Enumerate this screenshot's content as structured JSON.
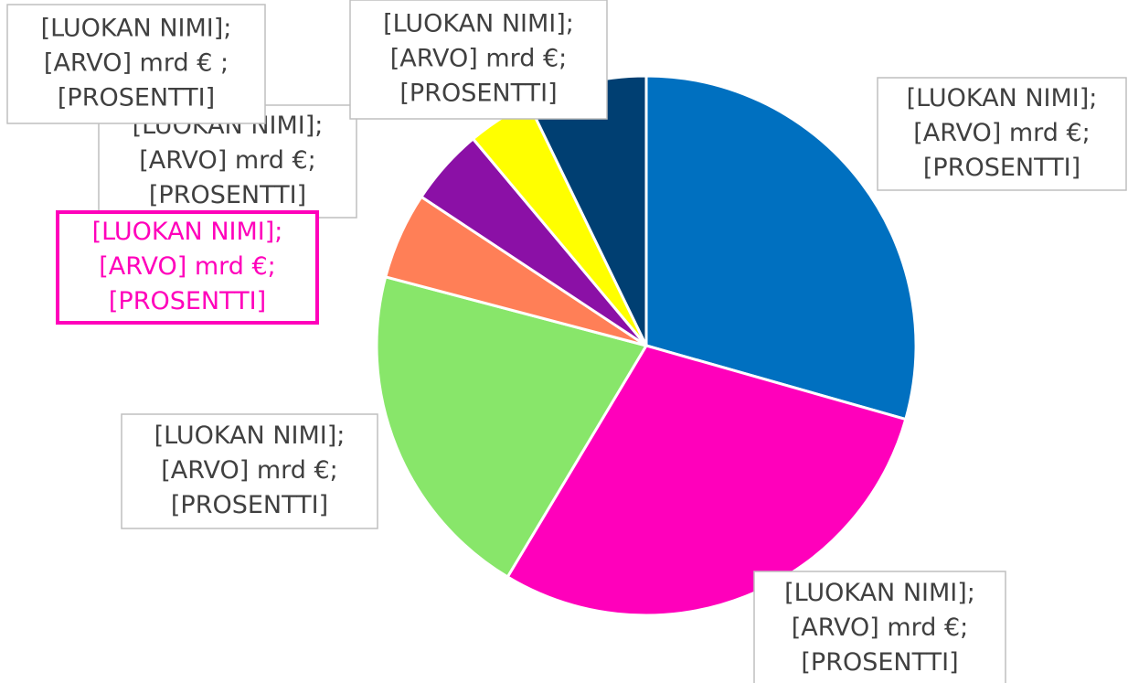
{
  "chart_data": {
    "type": "pie",
    "values": [
      29.4,
      29.2,
      20.5,
      5.2,
      4.6,
      3.9,
      7.2
    ],
    "colors": [
      "#0070c0",
      "#ff00bb",
      "#88e66a",
      "#ff7f57",
      "#8b10a6",
      "#ffff00",
      "#003f72"
    ],
    "labels": [
      [
        "[LUOKAN NIMI];",
        "[ARVO] mrd €;",
        "[PROSENTTI]"
      ],
      [
        "[LUOKAN NIMI];",
        "[ARVO] mrd €;",
        "[PROSENTTI]"
      ],
      [
        "[LUOKAN NIMI];",
        "[ARVO] mrd €;",
        "[PROSENTTI]"
      ],
      [
        "[LUOKAN NIMI];",
        "[ARVO] mrd €;",
        "[PROSENTTI]"
      ],
      [
        "[LUOKAN NIMI];",
        "[ARVO] mrd €;",
        "[PROSENTTI]"
      ],
      [
        "[LUOKAN NIMI];",
        "[ARVO] mrd € ;",
        "[PROSENTTI]"
      ],
      [
        "[LUOKAN NIMI];",
        "[ARVO] mrd €;",
        "[PROSENTTI]"
      ]
    ],
    "highlighted_label": 3,
    "highlight_color": "#ff00bb"
  }
}
